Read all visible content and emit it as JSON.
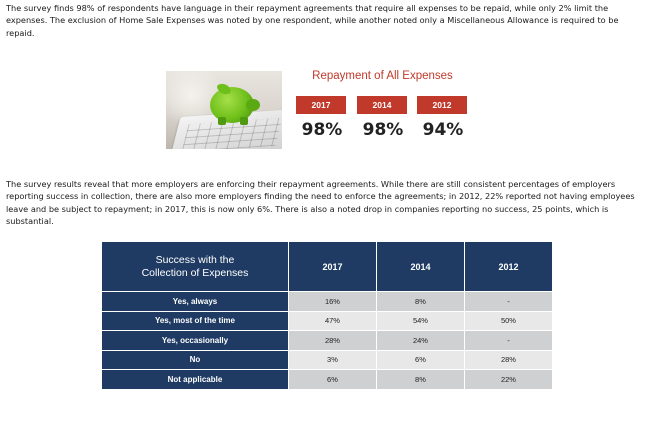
{
  "intro_paragraph": "The survey finds 98% of respondents have language in their repayment agreements that require all expenses to be repaid, while only 2% limit the expenses. The exclusion of Home Sale Expenses was noted by one respondent, while another noted only a Miscellaneous Allowance is required to be repaid.",
  "repayment": {
    "title": "Repayment of All Expenses",
    "years": [
      "2017",
      "2014",
      "2012"
    ],
    "values": [
      "98%",
      "98%",
      "94%"
    ]
  },
  "results_paragraph": "The survey results reveal that more employers are enforcing their repayment agreements. While there are still consistent percentages of employers reporting success in collection, there are also more employers finding the need to enforce the agreements; in 2012, 22% reported not having employees leave and be subject to repayment; in 2017, this is now only 6%. There is also a noted drop in companies reporting no success, 25 points, which is substantial.",
  "table": {
    "header_line1": "Success with the",
    "header_line2": "Collection of Expenses",
    "years": [
      "2017",
      "2014",
      "2012"
    ],
    "rows": [
      {
        "label": "Yes, always",
        "values": [
          "16%",
          "8%",
          "-"
        ]
      },
      {
        "label": "Yes, most of the time",
        "values": [
          "47%",
          "54%",
          "50%"
        ]
      },
      {
        "label": "Yes, occasionally",
        "values": [
          "28%",
          "24%",
          "-"
        ]
      },
      {
        "label": "No",
        "values": [
          "3%",
          "6%",
          "28%"
        ]
      },
      {
        "label": "Not applicable",
        "values": [
          "6%",
          "8%",
          "22%"
        ]
      }
    ]
  },
  "image": {
    "icon": "piggy-bank-calculator-photo"
  }
}
